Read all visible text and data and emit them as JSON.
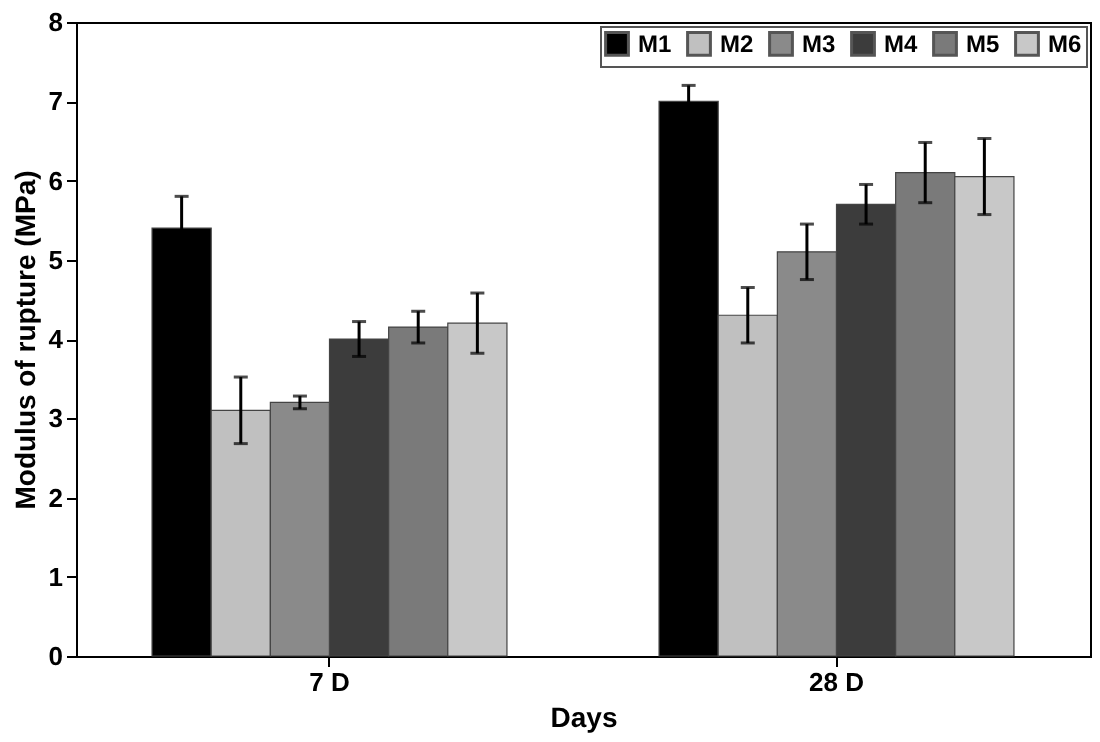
{
  "chart_data": {
    "type": "bar",
    "xlabel": "Days",
    "ylabel": "Modulus of rupture (MPa)",
    "categories": [
      "7 D",
      "28 D"
    ],
    "series": [
      {
        "name": "M1",
        "color": "#000000",
        "values": [
          5.4,
          7.0
        ],
        "errors": [
          0.4,
          0.2
        ]
      },
      {
        "name": "M2",
        "color": "#c0c0c0",
        "values": [
          3.1,
          4.3
        ],
        "errors": [
          0.42,
          0.35
        ]
      },
      {
        "name": "M3",
        "color": "#8a8a8a",
        "values": [
          3.2,
          5.1
        ],
        "errors": [
          0.08,
          0.35
        ]
      },
      {
        "name": "M4",
        "color": "#3c3c3c",
        "values": [
          4.0,
          5.7
        ],
        "errors": [
          0.22,
          0.25
        ]
      },
      {
        "name": "M5",
        "color": "#7a7a7a",
        "values": [
          4.15,
          6.1
        ],
        "errors": [
          0.2,
          0.38
        ]
      },
      {
        "name": "M6",
        "color": "#c8c8c8",
        "values": [
          4.2,
          6.05
        ],
        "errors": [
          0.38,
          0.48
        ]
      }
    ],
    "ylim": [
      0,
      8
    ],
    "yticks": [
      0,
      1,
      2,
      3,
      4,
      5,
      6,
      7,
      8
    ],
    "grid": false,
    "legend": "top right"
  }
}
